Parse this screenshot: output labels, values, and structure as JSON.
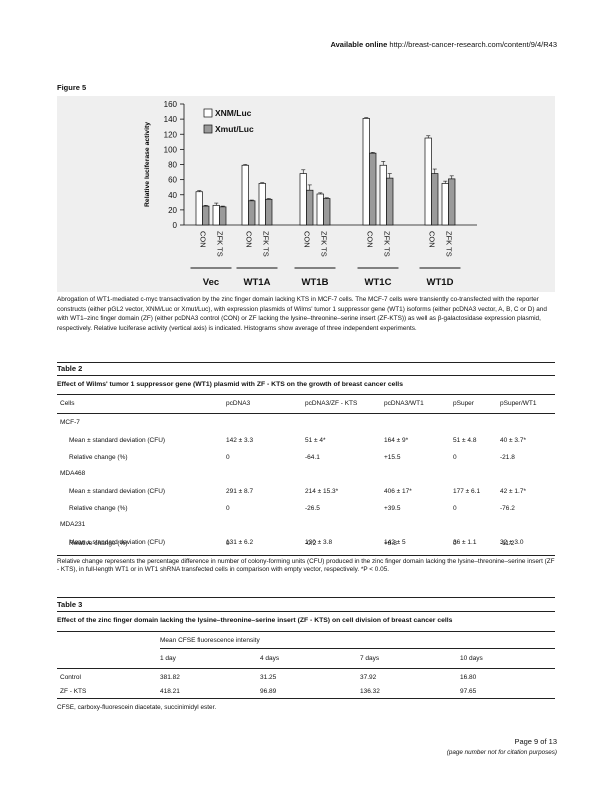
{
  "header": {
    "available_label": "Available online",
    "url": "http://breast-cancer-research.com/content/9/4/R43"
  },
  "figure": {
    "label": "Figure 5"
  },
  "chart_data": {
    "type": "bar",
    "ylabel": "Relative luciferase activity",
    "ylim": [
      0,
      160
    ],
    "yticks": [
      0,
      20,
      40,
      60,
      80,
      100,
      120,
      140,
      160
    ],
    "groups": [
      "Vec",
      "WT1A",
      "WT1B",
      "WT1C",
      "WT1D"
    ],
    "categories": [
      "CON",
      "ZFK TS",
      "CON",
      "ZFK TS",
      "CON",
      "ZFK TS",
      "CON",
      "ZFK TS",
      "CON",
      "ZFK TS"
    ],
    "series": [
      {
        "name": "XNM/Luc",
        "color": "#ffffff",
        "values": [
          44,
          26,
          79,
          55,
          68,
          41,
          141,
          79,
          115,
          55
        ],
        "errors": [
          1.5,
          3,
          1,
          1,
          5,
          1.5,
          1,
          5,
          3,
          3
        ]
      },
      {
        "name": "Xmut/Luc",
        "color": "#9a9a9a",
        "values": [
          25,
          24,
          32,
          34,
          46,
          35,
          95,
          62,
          68,
          61
        ],
        "errors": [
          1,
          1,
          1,
          1,
          7,
          1,
          1,
          6,
          6,
          4
        ]
      }
    ],
    "legend": "top-left"
  },
  "caption": "Abrogation of WT1-mediated c-myc transactivation by the zinc finger domain lacking KTS in MCF-7 cells. The MCF-7 cells were transiently co-transfected with the reporter constructs (either pGL2 vector, XNM/Luc or Xmut/Luc), with expression plasmids of Wilms' tumor 1 suppressor gene (WT1) isoforms (either pcDNA3 vector, A, B, C or D) and with WT1–zinc finger domain (ZF) (either pcDNA3 control (CON) or ZF lacking the lysine–threonine–serine insert (ZF-KTS)) as well as β-galactosidase expression plasmid, respectively. Relative luciferase activity (vertical axis) is indicated. Histograms show average of three independent experiments.",
  "table2": {
    "label": "Table 2",
    "title": "Effect of Wilms' tumor 1 suppressor gene (WT1) plasmid with ZF - KTS on the growth of breast cancer cells",
    "headers": [
      "Cells",
      "pcDNA3",
      "pcDNA3/ZF - KTS",
      "pcDNA3/WT1",
      "pSuper",
      "pSuper/WT1"
    ],
    "rows": [
      [
        "MCF-7",
        "",
        "",
        "",
        "",
        ""
      ],
      [
        "Mean ± standard deviation (CFU)",
        "142 ± 3.3",
        "51 ± 4*",
        "164 ± 9*",
        "51 ± 4.8",
        "40 ± 3.7*"
      ],
      [
        "Relative change (%)",
        "0",
        "-64.1",
        "+15.5",
        "0",
        "-21.8"
      ],
      [
        "MDA468",
        "",
        "",
        "",
        "",
        ""
      ],
      [
        "Mean ± standard deviation (CFU)",
        "291 ± 8.7",
        "214 ± 15.3*",
        "406 ± 17*",
        "177 ± 6.1",
        "42 ± 1.7*"
      ],
      [
        "Relative change (%)",
        "0",
        "-26.5",
        "+39.5",
        "0",
        "-76.2"
      ],
      [
        "MDA231",
        "",
        "",
        "",
        "",
        ""
      ],
      [
        "Mean ± standard deviation (CFU)",
        "131 ± 6.2",
        "130 ± 3.8",
        "142 ± 5",
        "36 ± 1.1",
        "32 ± 3.0"
      ],
      [
        "Relative change (%)",
        "0",
        "-0.2",
        "+8.8",
        "0",
        "-11.2"
      ]
    ],
    "footnote": "Relative change represents the percentage difference in number of colony-forming units (CFU) produced in the zinc finger domain lacking the lysine–threonine–serine insert (ZF - KTS), in full-length WT1 or in WT1 shRNA transfected cells in comparison with empty vector, respectively. *P < 0.05."
  },
  "table3": {
    "label": "Table 3",
    "title": "Effect of the zinc finger domain lacking the lysine–threonine–serine insert (ZF - KTS) on cell division of breast cancer cells",
    "group_header": "Mean CFSE fluorescence intensity",
    "headers": [
      "",
      "1 day",
      "4 days",
      "7 days",
      "10 days"
    ],
    "rows": [
      [
        "Control",
        "381.82",
        "31.25",
        "37.92",
        "16.80"
      ],
      [
        "ZF - KTS",
        "418.21",
        "96.89",
        "136.32",
        "97.65"
      ]
    ],
    "footnote": "CFSE, carboxy-fluorescein diacetate, succinimidyl ester."
  },
  "footer": {
    "page": "Page 9 of 13",
    "note": "(page number not for citation purposes)"
  }
}
